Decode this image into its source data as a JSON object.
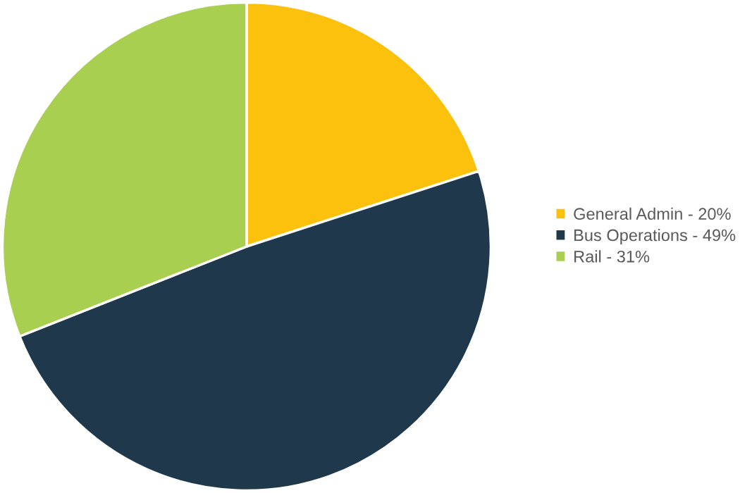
{
  "chart_data": {
    "type": "pie",
    "categories": [
      "General Admin - 20%",
      "Bus Operations - 49%",
      "Rail - 31%"
    ],
    "values": [
      20,
      49,
      31
    ],
    "colors": [
      "#fcc10c",
      "#1f384c",
      "#a8cf4f"
    ],
    "legend": "right"
  }
}
